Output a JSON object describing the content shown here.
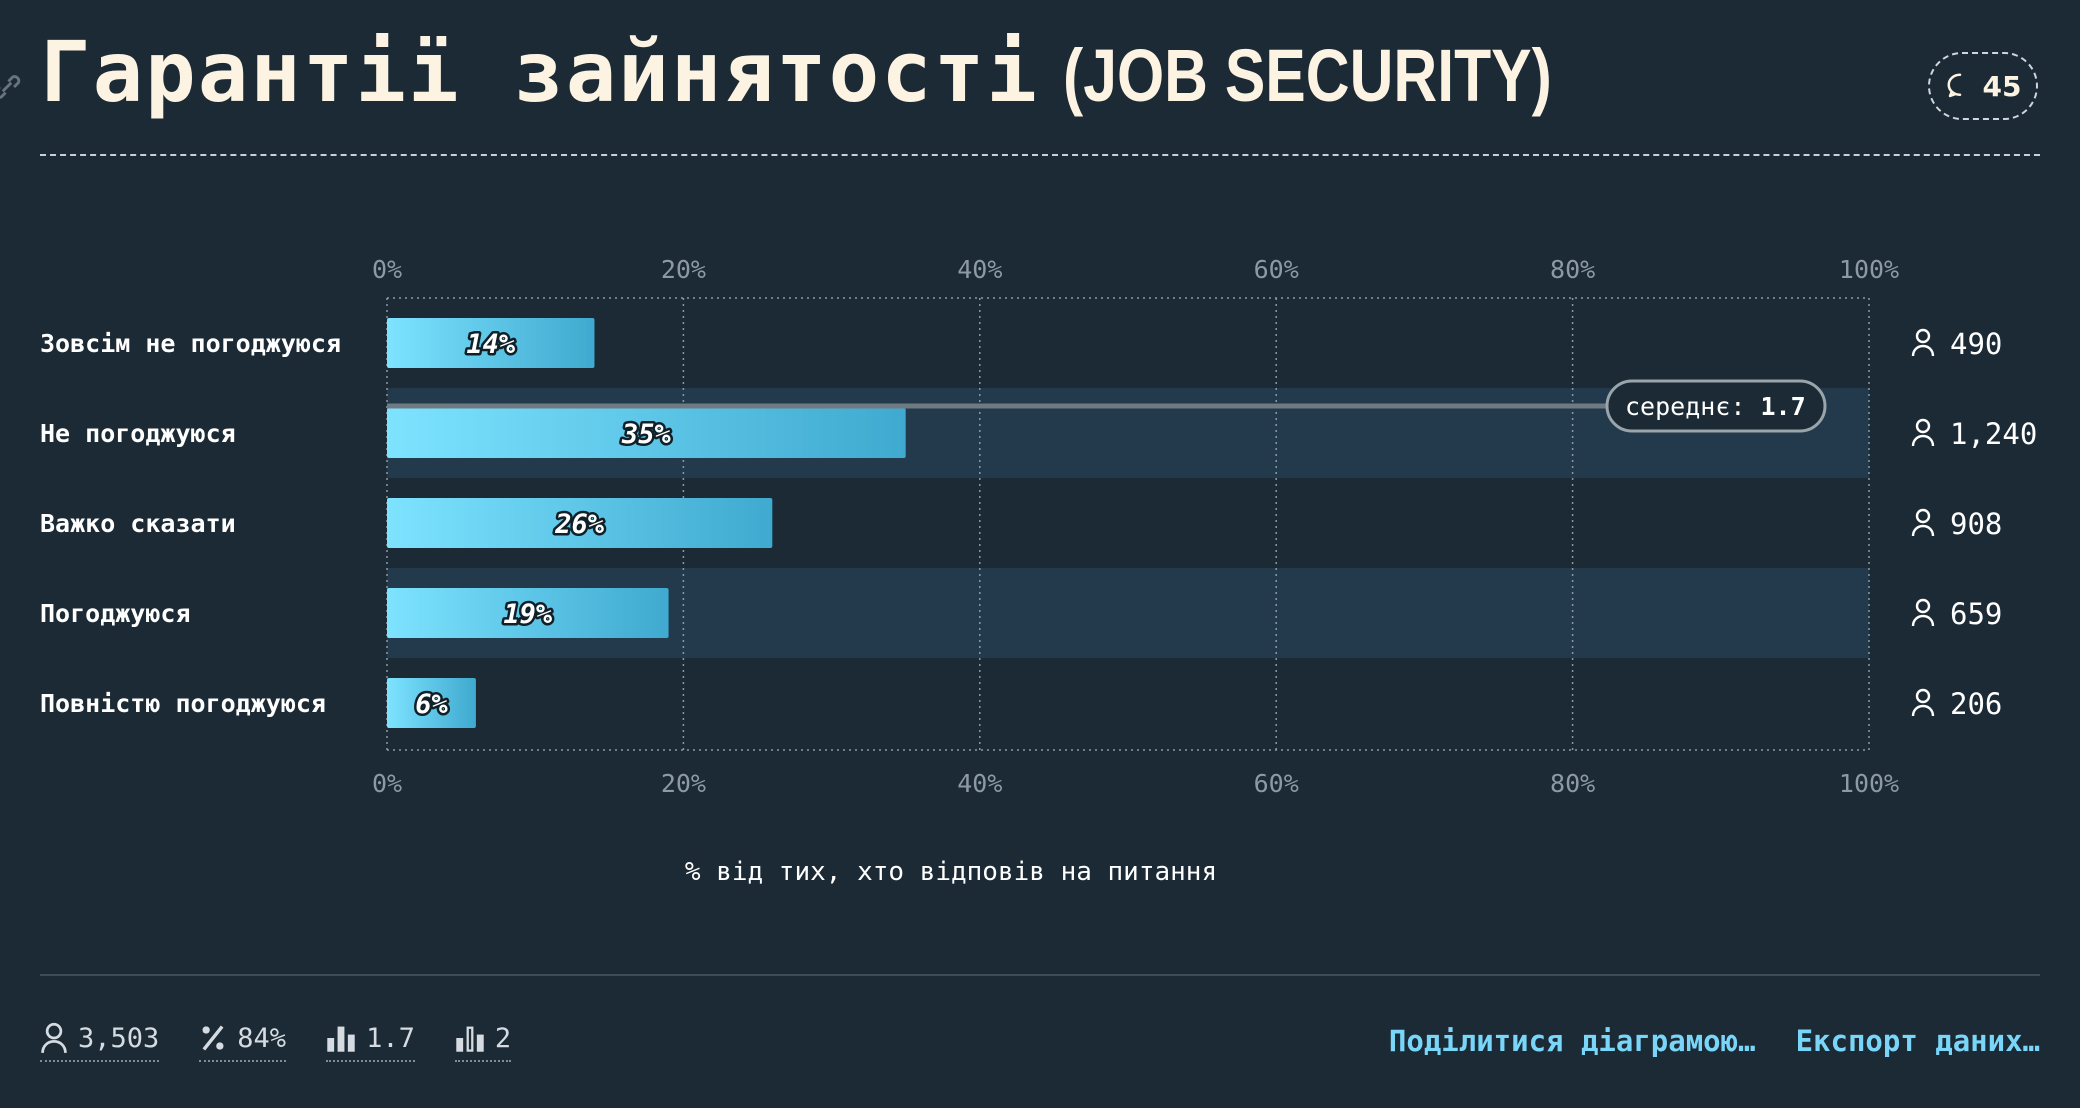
{
  "title": {
    "main": "Гарантії зайнятості",
    "sub": "(JOB SECURITY)"
  },
  "comments": {
    "count": "45"
  },
  "chart_data": {
    "type": "bar",
    "orientation": "horizontal",
    "categories": [
      "Зовсім не погоджуюся",
      "Не погоджуюся",
      "Важко сказати",
      "Погоджуюся",
      "Повністю погоджуюся"
    ],
    "values": [
      14,
      35,
      26,
      19,
      6
    ],
    "value_labels": [
      "14%",
      "35%",
      "26%",
      "19%",
      "6%"
    ],
    "counts": [
      "490",
      "1,240",
      "908",
      "659",
      "206"
    ],
    "xlim": [
      0,
      100
    ],
    "ticks": [
      0,
      20,
      40,
      60,
      80,
      100
    ],
    "tick_labels": [
      "0%",
      "20%",
      "40%",
      "60%",
      "80%",
      "100%"
    ],
    "xlabel": "% від тих, хто відповів на питання",
    "mean": {
      "label": "середнє:",
      "value": "1.7"
    },
    "colors": {
      "bar_start": "#7de3ff",
      "bar_end": "#3fa9cf",
      "band": "#223a4b"
    }
  },
  "footer": {
    "stats": [
      {
        "icon": "person-icon",
        "value": "3,503"
      },
      {
        "icon": "percent-icon",
        "value": "84%"
      },
      {
        "icon": "mean-chart-icon",
        "value": "1.7"
      },
      {
        "icon": "median-chart-icon",
        "value": "2"
      }
    ],
    "share_label": "Поділитися діаграмою…",
    "export_label": "Експорт даних…"
  }
}
